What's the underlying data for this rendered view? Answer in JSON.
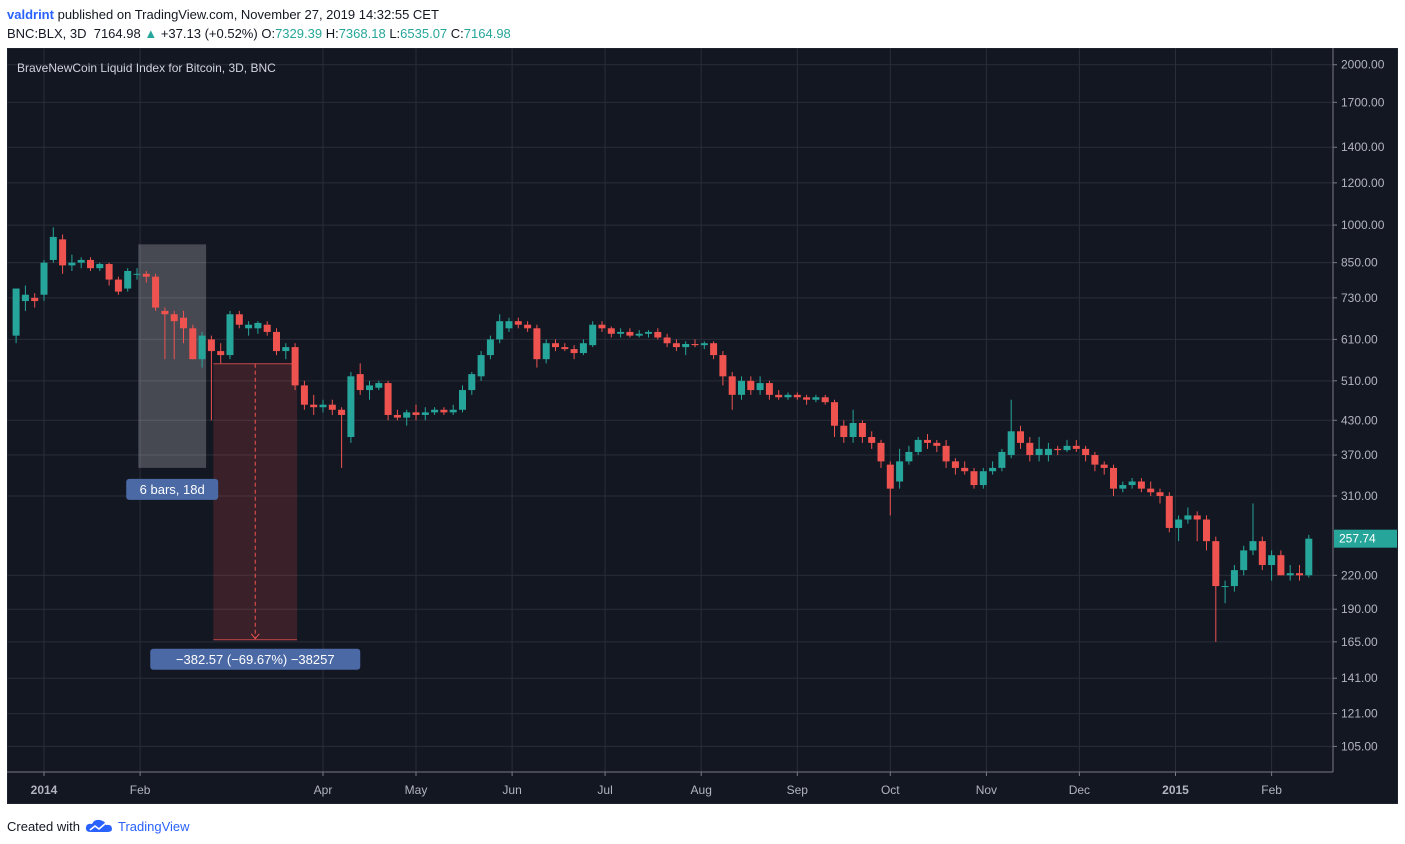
{
  "header": {
    "author": "valdrint",
    "published_text": "published on TradingView.com, November 27, 2019 14:32:55 CET",
    "symbol": "BNC:BLX, 3D",
    "last": "7164.98",
    "change_arrow": "▲",
    "change": "+37.13 (+0.52%)",
    "o_label": "O:",
    "o_value": "7329.39",
    "h_label": "H:",
    "h_value": "7368.18",
    "l_label": "L:",
    "l_value": "6535.07",
    "c_label": "C:",
    "c_value": "7164.98"
  },
  "chart_data": {
    "type": "candlestick",
    "title": "BraveNewCoin Liquid Index for Bitcoin, 3D, BNC",
    "y_scale": "log",
    "ylim": [
      94,
      2150
    ],
    "y_ticks": [
      2000,
      1700,
      1400,
      1200,
      1000,
      850,
      730,
      610,
      510,
      430,
      370,
      310,
      257.74,
      220,
      190,
      165,
      141,
      121,
      105
    ],
    "y_tick_labels": [
      "2000.00",
      "1700.00",
      "1400.00",
      "1200.00",
      "1000.00",
      "850.00",
      "730.00",
      "610.00",
      "510.00",
      "430.00",
      "370.00",
      "310.00",
      "257.74",
      "220.00",
      "190.00",
      "165.00",
      "141.00",
      "121.00",
      "105.00"
    ],
    "x_ticks": [
      "2014",
      "Feb",
      "Apr",
      "May",
      "Jun",
      "Jul",
      "Aug",
      "Sep",
      "Oct",
      "Nov",
      "Dec",
      "2015",
      "Feb"
    ],
    "x_tick_dates": [
      "2014-01-01",
      "2014-02-01",
      "2014-04-01",
      "2014-05-01",
      "2014-06-01",
      "2014-07-01",
      "2014-08-01",
      "2014-09-01",
      "2014-10-01",
      "2014-11-01",
      "2014-12-01",
      "2015-01-01",
      "2015-02-01"
    ],
    "last_price": 257.74,
    "last_price_label": "257.74",
    "colors": {
      "up": "#26a69a",
      "down": "#ef5350",
      "background": "#131722",
      "grid": "#2a2e39",
      "text": "#b2b5be",
      "label_box": "#4a69a5"
    },
    "candles": [
      {
        "date": "2013-12-23",
        "o": 620,
        "h": 760,
        "l": 600,
        "c": 760
      },
      {
        "date": "2013-12-26",
        "o": 720,
        "h": 770,
        "l": 690,
        "c": 740
      },
      {
        "date": "2013-12-29",
        "o": 730,
        "h": 745,
        "l": 700,
        "c": 720
      },
      {
        "date": "2014-01-01",
        "o": 740,
        "h": 860,
        "l": 720,
        "c": 850
      },
      {
        "date": "2014-01-04",
        "o": 860,
        "h": 990,
        "l": 850,
        "c": 950
      },
      {
        "date": "2014-01-07",
        "o": 940,
        "h": 960,
        "l": 810,
        "c": 840
      },
      {
        "date": "2014-01-10",
        "o": 840,
        "h": 880,
        "l": 820,
        "c": 850
      },
      {
        "date": "2014-01-13",
        "o": 850,
        "h": 870,
        "l": 830,
        "c": 860
      },
      {
        "date": "2014-01-16",
        "o": 860,
        "h": 870,
        "l": 820,
        "c": 830
      },
      {
        "date": "2014-01-19",
        "o": 830,
        "h": 850,
        "l": 820,
        "c": 845
      },
      {
        "date": "2014-01-22",
        "o": 845,
        "h": 850,
        "l": 770,
        "c": 790
      },
      {
        "date": "2014-01-25",
        "o": 790,
        "h": 800,
        "l": 740,
        "c": 750
      },
      {
        "date": "2014-01-28",
        "o": 760,
        "h": 830,
        "l": 750,
        "c": 820
      },
      {
        "date": "2014-01-31",
        "o": 810,
        "h": 830,
        "l": 790,
        "c": 810
      },
      {
        "date": "2014-02-03",
        "o": 810,
        "h": 820,
        "l": 780,
        "c": 800
      },
      {
        "date": "2014-02-06",
        "o": 800,
        "h": 810,
        "l": 690,
        "c": 700
      },
      {
        "date": "2014-02-09",
        "o": 690,
        "h": 700,
        "l": 560,
        "c": 680
      },
      {
        "date": "2014-02-12",
        "o": 680,
        "h": 690,
        "l": 560,
        "c": 660
      },
      {
        "date": "2014-02-15",
        "o": 670,
        "h": 690,
        "l": 600,
        "c": 640
      },
      {
        "date": "2014-02-18",
        "o": 640,
        "h": 650,
        "l": 560,
        "c": 560
      },
      {
        "date": "2014-02-21",
        "o": 560,
        "h": 630,
        "l": 540,
        "c": 620
      },
      {
        "date": "2014-02-24",
        "o": 610,
        "h": 620,
        "l": 430,
        "c": 580
      },
      {
        "date": "2014-02-27",
        "o": 580,
        "h": 600,
        "l": 550,
        "c": 570
      },
      {
        "date": "2014-03-02",
        "o": 570,
        "h": 690,
        "l": 560,
        "c": 680
      },
      {
        "date": "2014-03-05",
        "o": 680,
        "h": 690,
        "l": 640,
        "c": 650
      },
      {
        "date": "2014-03-08",
        "o": 640,
        "h": 660,
        "l": 620,
        "c": 650
      },
      {
        "date": "2014-03-11",
        "o": 640,
        "h": 660,
        "l": 625,
        "c": 655
      },
      {
        "date": "2014-03-14",
        "o": 650,
        "h": 660,
        "l": 620,
        "c": 630
      },
      {
        "date": "2014-03-17",
        "o": 630,
        "h": 640,
        "l": 570,
        "c": 580
      },
      {
        "date": "2014-03-20",
        "o": 580,
        "h": 600,
        "l": 560,
        "c": 590
      },
      {
        "date": "2014-03-23",
        "o": 590,
        "h": 600,
        "l": 490,
        "c": 500
      },
      {
        "date": "2014-03-26",
        "o": 500,
        "h": 510,
        "l": 450,
        "c": 460
      },
      {
        "date": "2014-03-29",
        "o": 460,
        "h": 480,
        "l": 440,
        "c": 455
      },
      {
        "date": "2014-04-01",
        "o": 455,
        "h": 470,
        "l": 445,
        "c": 460
      },
      {
        "date": "2014-04-04",
        "o": 460,
        "h": 470,
        "l": 440,
        "c": 450
      },
      {
        "date": "2014-04-07",
        "o": 450,
        "h": 455,
        "l": 350,
        "c": 440
      },
      {
        "date": "2014-04-10",
        "o": 400,
        "h": 530,
        "l": 390,
        "c": 520
      },
      {
        "date": "2014-04-13",
        "o": 525,
        "h": 550,
        "l": 480,
        "c": 490
      },
      {
        "date": "2014-04-16",
        "o": 490,
        "h": 510,
        "l": 470,
        "c": 500
      },
      {
        "date": "2014-04-19",
        "o": 495,
        "h": 510,
        "l": 490,
        "c": 505
      },
      {
        "date": "2014-04-22",
        "o": 505,
        "h": 510,
        "l": 430,
        "c": 440
      },
      {
        "date": "2014-04-25",
        "o": 440,
        "h": 450,
        "l": 430,
        "c": 435
      },
      {
        "date": "2014-04-28",
        "o": 435,
        "h": 450,
        "l": 420,
        "c": 445
      },
      {
        "date": "2014-05-01",
        "o": 445,
        "h": 460,
        "l": 430,
        "c": 440
      },
      {
        "date": "2014-05-04",
        "o": 440,
        "h": 455,
        "l": 430,
        "c": 445
      },
      {
        "date": "2014-05-07",
        "o": 445,
        "h": 455,
        "l": 440,
        "c": 450
      },
      {
        "date": "2014-05-10",
        "o": 450,
        "h": 455,
        "l": 440,
        "c": 445
      },
      {
        "date": "2014-05-13",
        "o": 445,
        "h": 460,
        "l": 440,
        "c": 450
      },
      {
        "date": "2014-05-16",
        "o": 450,
        "h": 500,
        "l": 445,
        "c": 490
      },
      {
        "date": "2014-05-19",
        "o": 490,
        "h": 530,
        "l": 480,
        "c": 525
      },
      {
        "date": "2014-05-22",
        "o": 520,
        "h": 580,
        "l": 510,
        "c": 570
      },
      {
        "date": "2014-05-25",
        "o": 570,
        "h": 620,
        "l": 560,
        "c": 610
      },
      {
        "date": "2014-05-28",
        "o": 610,
        "h": 680,
        "l": 600,
        "c": 660
      },
      {
        "date": "2014-05-31",
        "o": 640,
        "h": 670,
        "l": 630,
        "c": 660
      },
      {
        "date": "2014-06-03",
        "o": 660,
        "h": 670,
        "l": 640,
        "c": 650
      },
      {
        "date": "2014-06-06",
        "o": 650,
        "h": 660,
        "l": 630,
        "c": 640
      },
      {
        "date": "2014-06-09",
        "o": 640,
        "h": 650,
        "l": 540,
        "c": 560
      },
      {
        "date": "2014-06-12",
        "o": 560,
        "h": 610,
        "l": 550,
        "c": 600
      },
      {
        "date": "2014-06-15",
        "o": 600,
        "h": 610,
        "l": 580,
        "c": 590
      },
      {
        "date": "2014-06-18",
        "o": 590,
        "h": 600,
        "l": 580,
        "c": 585
      },
      {
        "date": "2014-06-21",
        "o": 585,
        "h": 595,
        "l": 560,
        "c": 575
      },
      {
        "date": "2014-06-24",
        "o": 575,
        "h": 610,
        "l": 570,
        "c": 600
      },
      {
        "date": "2014-06-27",
        "o": 595,
        "h": 660,
        "l": 590,
        "c": 650
      },
      {
        "date": "2014-06-30",
        "o": 650,
        "h": 660,
        "l": 630,
        "c": 640
      },
      {
        "date": "2014-07-03",
        "o": 640,
        "h": 645,
        "l": 615,
        "c": 625
      },
      {
        "date": "2014-07-06",
        "o": 625,
        "h": 640,
        "l": 615,
        "c": 630
      },
      {
        "date": "2014-07-09",
        "o": 630,
        "h": 640,
        "l": 615,
        "c": 620
      },
      {
        "date": "2014-07-12",
        "o": 620,
        "h": 635,
        "l": 615,
        "c": 625
      },
      {
        "date": "2014-07-15",
        "o": 625,
        "h": 635,
        "l": 615,
        "c": 630
      },
      {
        "date": "2014-07-18",
        "o": 630,
        "h": 640,
        "l": 610,
        "c": 615
      },
      {
        "date": "2014-07-21",
        "o": 615,
        "h": 625,
        "l": 590,
        "c": 600
      },
      {
        "date": "2014-07-24",
        "o": 600,
        "h": 610,
        "l": 580,
        "c": 590
      },
      {
        "date": "2014-07-27",
        "o": 590,
        "h": 605,
        "l": 570,
        "c": 598
      },
      {
        "date": "2014-07-30",
        "o": 598,
        "h": 610,
        "l": 590,
        "c": 595
      },
      {
        "date": "2014-08-02",
        "o": 595,
        "h": 605,
        "l": 585,
        "c": 600
      },
      {
        "date": "2014-08-05",
        "o": 600,
        "h": 605,
        "l": 560,
        "c": 570
      },
      {
        "date": "2014-08-08",
        "o": 570,
        "h": 580,
        "l": 500,
        "c": 520
      },
      {
        "date": "2014-08-11",
        "o": 520,
        "h": 530,
        "l": 450,
        "c": 480
      },
      {
        "date": "2014-08-14",
        "o": 480,
        "h": 520,
        "l": 470,
        "c": 510
      },
      {
        "date": "2014-08-17",
        "o": 510,
        "h": 520,
        "l": 480,
        "c": 490
      },
      {
        "date": "2014-08-20",
        "o": 490,
        "h": 520,
        "l": 480,
        "c": 505
      },
      {
        "date": "2014-08-23",
        "o": 505,
        "h": 510,
        "l": 470,
        "c": 480
      },
      {
        "date": "2014-08-26",
        "o": 480,
        "h": 490,
        "l": 470,
        "c": 475
      },
      {
        "date": "2014-08-29",
        "o": 475,
        "h": 485,
        "l": 470,
        "c": 480
      },
      {
        "date": "2014-09-01",
        "o": 480,
        "h": 485,
        "l": 470,
        "c": 475
      },
      {
        "date": "2014-09-04",
        "o": 475,
        "h": 480,
        "l": 460,
        "c": 470
      },
      {
        "date": "2014-09-07",
        "o": 470,
        "h": 480,
        "l": 465,
        "c": 475
      },
      {
        "date": "2014-09-10",
        "o": 475,
        "h": 480,
        "l": 460,
        "c": 465
      },
      {
        "date": "2014-09-13",
        "o": 465,
        "h": 470,
        "l": 400,
        "c": 420
      },
      {
        "date": "2014-09-16",
        "o": 420,
        "h": 430,
        "l": 390,
        "c": 400
      },
      {
        "date": "2014-09-19",
        "o": 400,
        "h": 450,
        "l": 390,
        "c": 425
      },
      {
        "date": "2014-09-22",
        "o": 425,
        "h": 430,
        "l": 390,
        "c": 400
      },
      {
        "date": "2014-09-25",
        "o": 400,
        "h": 410,
        "l": 380,
        "c": 390
      },
      {
        "date": "2014-09-28",
        "o": 390,
        "h": 395,
        "l": 350,
        "c": 360
      },
      {
        "date": "2014-10-01",
        "o": 355,
        "h": 360,
        "l": 285,
        "c": 320
      },
      {
        "date": "2014-10-04",
        "o": 330,
        "h": 380,
        "l": 320,
        "c": 360
      },
      {
        "date": "2014-10-07",
        "o": 360,
        "h": 385,
        "l": 355,
        "c": 375
      },
      {
        "date": "2014-10-10",
        "o": 375,
        "h": 400,
        "l": 370,
        "c": 395
      },
      {
        "date": "2014-10-13",
        "o": 395,
        "h": 405,
        "l": 380,
        "c": 390
      },
      {
        "date": "2014-10-16",
        "o": 390,
        "h": 395,
        "l": 375,
        "c": 385
      },
      {
        "date": "2014-10-19",
        "o": 385,
        "h": 395,
        "l": 350,
        "c": 360
      },
      {
        "date": "2014-10-22",
        "o": 360,
        "h": 365,
        "l": 340,
        "c": 350
      },
      {
        "date": "2014-10-25",
        "o": 350,
        "h": 360,
        "l": 340,
        "c": 345
      },
      {
        "date": "2014-10-28",
        "o": 345,
        "h": 350,
        "l": 320,
        "c": 325
      },
      {
        "date": "2014-10-31",
        "o": 325,
        "h": 350,
        "l": 320,
        "c": 345
      },
      {
        "date": "2014-11-03",
        "o": 345,
        "h": 360,
        "l": 340,
        "c": 350
      },
      {
        "date": "2014-11-06",
        "o": 350,
        "h": 380,
        "l": 345,
        "c": 375
      },
      {
        "date": "2014-11-09",
        "o": 370,
        "h": 470,
        "l": 365,
        "c": 410
      },
      {
        "date": "2014-11-12",
        "o": 410,
        "h": 420,
        "l": 380,
        "c": 390
      },
      {
        "date": "2014-11-15",
        "o": 390,
        "h": 400,
        "l": 360,
        "c": 370
      },
      {
        "date": "2014-11-18",
        "o": 370,
        "h": 400,
        "l": 360,
        "c": 380
      },
      {
        "date": "2014-11-21",
        "o": 370,
        "h": 390,
        "l": 360,
        "c": 380
      },
      {
        "date": "2014-11-24",
        "o": 380,
        "h": 385,
        "l": 370,
        "c": 378
      },
      {
        "date": "2014-11-27",
        "o": 378,
        "h": 395,
        "l": 375,
        "c": 385
      },
      {
        "date": "2014-11-30",
        "o": 385,
        "h": 395,
        "l": 375,
        "c": 380
      },
      {
        "date": "2014-12-03",
        "o": 380,
        "h": 385,
        "l": 360,
        "c": 370
      },
      {
        "date": "2014-12-06",
        "o": 370,
        "h": 375,
        "l": 345,
        "c": 355
      },
      {
        "date": "2014-12-09",
        "o": 355,
        "h": 360,
        "l": 340,
        "c": 350
      },
      {
        "date": "2014-12-12",
        "o": 350,
        "h": 355,
        "l": 310,
        "c": 320
      },
      {
        "date": "2014-12-15",
        "o": 320,
        "h": 330,
        "l": 315,
        "c": 325
      },
      {
        "date": "2014-12-18",
        "o": 325,
        "h": 335,
        "l": 320,
        "c": 330
      },
      {
        "date": "2014-12-21",
        "o": 330,
        "h": 335,
        "l": 315,
        "c": 320
      },
      {
        "date": "2014-12-24",
        "o": 320,
        "h": 330,
        "l": 310,
        "c": 315
      },
      {
        "date": "2014-12-27",
        "o": 315,
        "h": 320,
        "l": 300,
        "c": 310
      },
      {
        "date": "2014-12-30",
        "o": 310,
        "h": 315,
        "l": 265,
        "c": 270
      },
      {
        "date": "2015-01-02",
        "o": 270,
        "h": 285,
        "l": 255,
        "c": 280
      },
      {
        "date": "2015-01-05",
        "o": 280,
        "h": 295,
        "l": 275,
        "c": 285
      },
      {
        "date": "2015-01-08",
        "o": 285,
        "h": 290,
        "l": 255,
        "c": 280
      },
      {
        "date": "2015-01-11",
        "o": 280,
        "h": 285,
        "l": 245,
        "c": 255
      },
      {
        "date": "2015-01-14",
        "o": 255,
        "h": 260,
        "l": 165,
        "c": 210
      },
      {
        "date": "2015-01-17",
        "o": 210,
        "h": 215,
        "l": 195,
        "c": 210
      },
      {
        "date": "2015-01-20",
        "o": 210,
        "h": 230,
        "l": 205,
        "c": 225
      },
      {
        "date": "2015-01-23",
        "o": 225,
        "h": 250,
        "l": 220,
        "c": 245
      },
      {
        "date": "2015-01-26",
        "o": 245,
        "h": 300,
        "l": 240,
        "c": 255
      },
      {
        "date": "2015-01-29",
        "o": 255,
        "h": 260,
        "l": 225,
        "c": 230
      },
      {
        "date": "2015-02-01",
        "o": 230,
        "h": 245,
        "l": 215,
        "c": 240
      },
      {
        "date": "2015-02-04",
        "o": 240,
        "h": 245,
        "l": 220,
        "c": 220
      },
      {
        "date": "2015-02-07",
        "o": 220,
        "h": 230,
        "l": 215,
        "c": 222
      },
      {
        "date": "2015-02-10",
        "o": 222,
        "h": 230,
        "l": 215,
        "c": 220
      },
      {
        "date": "2015-02-13",
        "o": 220,
        "h": 262,
        "l": 218,
        "c": 257.74
      }
    ]
  },
  "annotations": {
    "bars_label": "6 bars, 18d",
    "bars_range": {
      "start": "2014-02-03",
      "end": "2014-02-21",
      "high": 920,
      "low": 350
    },
    "change_label": "−382.57 (−69.67%) −38257",
    "change_range": {
      "start": "2014-02-24",
      "end": "2014-03-23",
      "from": 549.1,
      "to": 166.5
    }
  },
  "footer": {
    "created_with": "Created with",
    "brand": "TradingView"
  }
}
